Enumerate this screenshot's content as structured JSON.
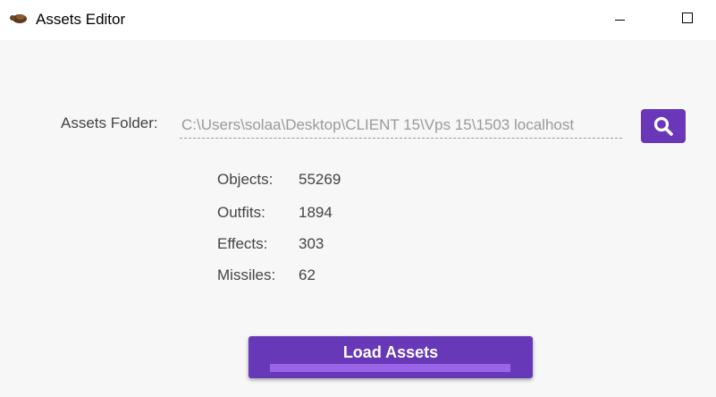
{
  "window": {
    "title": "Assets Editor",
    "app_icon": "turtle-icon"
  },
  "folder": {
    "label": "Assets Folder:",
    "value": "C:\\Users\\solaa\\Desktop\\CLIENT 15\\Vps 15\\1503 localhost",
    "browse_icon": "search-icon"
  },
  "stats": [
    {
      "label": "Objects:",
      "value": "55269"
    },
    {
      "label": "Outfits:",
      "value": "1894"
    },
    {
      "label": "Effects:",
      "value": "303"
    },
    {
      "label": "Missiles:",
      "value": "62"
    }
  ],
  "load": {
    "label": "Load Assets",
    "progress": 1.0
  },
  "colors": {
    "accent": "#6738b8",
    "progress": "#9a65e6"
  }
}
